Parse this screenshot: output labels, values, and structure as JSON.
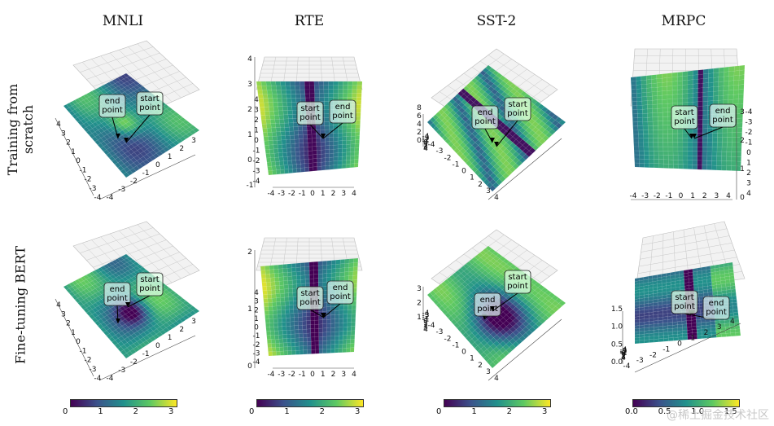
{
  "columns": [
    "MNLI",
    "RTE",
    "SST-2",
    "MRPC"
  ],
  "rows": [
    "Training from scratch",
    "Fine-tuning BERT"
  ],
  "annotations": {
    "start": [
      "start",
      "point"
    ],
    "end": [
      "end",
      "point"
    ]
  },
  "colors": {
    "low": "#440154",
    "mid": "#21918c",
    "high": "#fde725",
    "grid": "#c8c8c8",
    "axis": "#444444"
  },
  "chart_data": {
    "type": "surface3d",
    "colormap": "viridis",
    "panels": [
      {
        "row": 0,
        "col": 0,
        "x_ticks": [
          "4",
          "3",
          "2",
          "1",
          "0",
          "-1",
          "-2",
          "-3",
          "-4"
        ],
        "y_ticks": [
          "-4",
          "-3",
          "-2",
          "-1",
          "0",
          "1",
          "2",
          "3"
        ]
      },
      {
        "row": 0,
        "col": 1,
        "z_ticks": [
          "4",
          "3",
          "2",
          "1",
          "0",
          "-1"
        ],
        "y_ticks": [
          "4",
          "3",
          "2",
          "1",
          "0",
          "-1",
          "-2",
          "-3",
          "-4"
        ],
        "x_ticks": [
          "-4",
          "-3",
          "-2",
          "-1",
          "0",
          "1",
          "2",
          "3",
          "4"
        ]
      },
      {
        "row": 0,
        "col": 2,
        "z_ticks": [
          "8",
          "6",
          "4",
          "2",
          "0"
        ],
        "x_ticks": [
          "-4",
          "-3",
          "-2",
          "-1",
          "0",
          "1",
          "2",
          "3",
          "4"
        ],
        "y_ticks": [
          "4",
          "3",
          "2",
          "1",
          "0",
          "-1",
          "-2",
          "-3",
          "-4"
        ]
      },
      {
        "row": 0,
        "col": 3,
        "y_ticks": [
          "-4",
          "-3",
          "-2",
          "-1",
          "0",
          "1",
          "2",
          "3",
          "4"
        ],
        "z_ticks": [
          "3",
          "2",
          "1",
          "0"
        ],
        "x_ticks": [
          "-4",
          "-3",
          "-2",
          "-1",
          "0",
          "1",
          "2",
          "3",
          "4"
        ]
      },
      {
        "row": 1,
        "col": 0,
        "x_ticks": [
          "4",
          "3",
          "2",
          "1",
          "0",
          "-1",
          "-2",
          "-3",
          "-4"
        ],
        "y_ticks": [
          "-4",
          "-3",
          "-2",
          "-1",
          "0",
          "1",
          "2",
          "3"
        ]
      },
      {
        "row": 1,
        "col": 1,
        "z_ticks": [
          "2",
          "1",
          "0"
        ],
        "y_ticks": [
          "4",
          "3",
          "2",
          "1",
          "0",
          "-1",
          "-2",
          "-3",
          "-4"
        ],
        "x_ticks": [
          "-4",
          "-3",
          "-2",
          "-1",
          "0",
          "1",
          "2",
          "3",
          "4"
        ]
      },
      {
        "row": 1,
        "col": 2,
        "z_ticks": [
          "3",
          "2",
          "1"
        ],
        "x_ticks": [
          "-4",
          "-3",
          "-2",
          "-1",
          "0",
          "1",
          "2",
          "3",
          "4"
        ],
        "y_ticks": [
          "4",
          "3",
          "2",
          "1",
          "0",
          "-1",
          "-2",
          "-3",
          "-4"
        ]
      },
      {
        "row": 1,
        "col": 3,
        "z_ticks": [
          "1.5",
          "1.0",
          "0.5",
          "0.0"
        ],
        "x_ticks": [
          "-4",
          "-3",
          "-2",
          "-1",
          "0",
          "1",
          "2",
          "3",
          "4"
        ],
        "y_ticks": [
          "-4",
          "-3",
          "-2",
          "-1",
          "0",
          "1",
          "2",
          "3",
          "4"
        ]
      }
    ],
    "colorbars": [
      {
        "col": 0,
        "ticks": [
          "0",
          "1",
          "2",
          "3"
        ],
        "range": [
          0,
          3
        ]
      },
      {
        "col": 1,
        "ticks": [
          "0",
          "1",
          "2",
          "3"
        ],
        "range": [
          0,
          3
        ]
      },
      {
        "col": 2,
        "ticks": [
          "0",
          "1",
          "2",
          "3"
        ],
        "range": [
          0,
          3
        ]
      },
      {
        "col": 3,
        "ticks": [
          "0.0",
          "0.5",
          "1.0",
          "1.5"
        ],
        "range": [
          0,
          1.6
        ]
      }
    ]
  },
  "watermark": "@稀土掘金技术社区"
}
